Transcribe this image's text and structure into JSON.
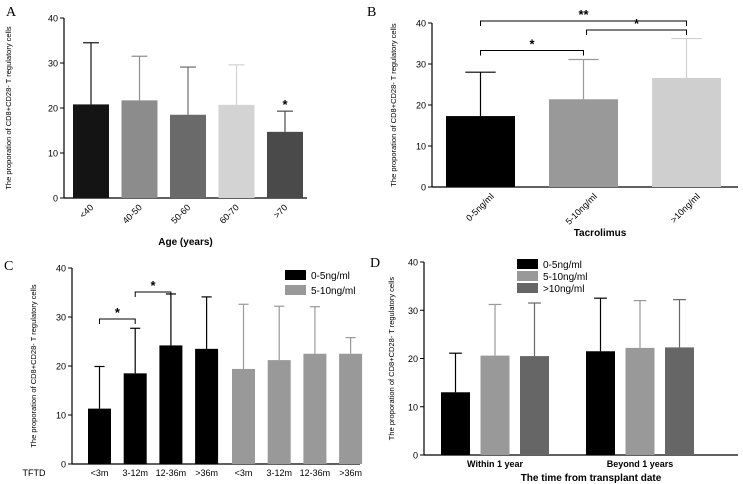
{
  "chart_data": [
    {
      "panel": "A",
      "type": "bar",
      "categories": [
        "<40",
        "40-50",
        "50-60",
        "60-70",
        ">70"
      ],
      "values": [
        20.8,
        21.7,
        18.5,
        20.7,
        14.7
      ],
      "errors": [
        13.7,
        9.8,
        10.6,
        8.9,
        4.6
      ],
      "colors": [
        "#141414",
        "#8c8c8c",
        "#6a6a6a",
        "#d3d3d3",
        "#4a4a4a"
      ],
      "xlabel": "Age (years)",
      "ylabel": "The proporation of CD8+CD28- T regulatory cells",
      "ylim": [
        0,
        40
      ],
      "yticks": [
        0,
        10,
        20,
        30,
        40
      ],
      "significance": [
        {
          "bar": 4,
          "label": "*"
        }
      ]
    },
    {
      "panel": "B",
      "type": "bar",
      "categories": [
        "0-5ng/ml",
        "5-10ng/ml",
        ">10ng/ml"
      ],
      "values": [
        17.3,
        21.4,
        26.6
      ],
      "errors": [
        10.7,
        9.7,
        9.6
      ],
      "colors": [
        "#000000",
        "#999999",
        "#cfcfcf"
      ],
      "xlabel": "Tacrolimus",
      "ylabel": "The proporation of CD8+CD28- T regulatory cells",
      "ylim": [
        0,
        40
      ],
      "yticks": [
        0,
        10,
        20,
        30,
        40
      ],
      "brackets": [
        {
          "from": 0,
          "to": 2,
          "label": "**",
          "level": 40.5
        },
        {
          "from": 1,
          "to": 2,
          "label": "*",
          "level": 38.3
        },
        {
          "from": 0,
          "to": 1,
          "label": "*",
          "level": 33.3
        }
      ]
    },
    {
      "panel": "C",
      "type": "bar",
      "x_prefix": "TFTD",
      "categories": [
        "<3m",
        "3-12m",
        "12-36m",
        ">36m",
        "<3m",
        "3-12m",
        "12-36m",
        ">36m"
      ],
      "groups": [
        0,
        0,
        0,
        0,
        1,
        1,
        1,
        1
      ],
      "values": [
        11.3,
        18.5,
        24.2,
        23.5,
        19.4,
        21.2,
        22.5,
        22.5
      ],
      "errors": [
        8.6,
        9.2,
        10.5,
        10.6,
        13.2,
        11.0,
        9.6,
        3.3
      ],
      "ylabel": "The proporation of CD8+CD28- T regulatory cells",
      "ylim": [
        0,
        40
      ],
      "yticks": [
        0,
        10,
        20,
        30,
        40
      ],
      "series": [
        {
          "name": "0-5ng/ml",
          "color": "#000000"
        },
        {
          "name": "5-10ng/ml",
          "color": "#999999"
        }
      ],
      "legend_position": "top-right",
      "brackets": [
        {
          "from": 0,
          "to": 1,
          "label": "*",
          "level": 29.6
        },
        {
          "from": 1,
          "to": 2,
          "label": "*",
          "level": 35.1
        }
      ]
    },
    {
      "panel": "D",
      "type": "bar",
      "categories": [
        "Within 1 year",
        "Beyond 1 years"
      ],
      "series": [
        {
          "name": "0-5ng/ml",
          "color": "#000000",
          "values": [
            13.0,
            21.5
          ],
          "errors": [
            8.1,
            11.0
          ]
        },
        {
          "name": "5-10ng/ml",
          "color": "#999999",
          "values": [
            20.6,
            22.2
          ],
          "errors": [
            10.6,
            9.8
          ]
        },
        {
          "name": ">10ng/ml",
          "color": "#666666",
          "values": [
            20.5,
            22.3
          ],
          "errors": [
            11.0,
            9.9
          ]
        }
      ],
      "xlabel": "The time from transplant date",
      "ylabel": "The proporation of CD8+CD28- T regulatory cells",
      "ylim": [
        0,
        40
      ],
      "yticks": [
        0,
        10,
        20,
        30,
        40
      ],
      "legend_position": "top-left"
    }
  ]
}
